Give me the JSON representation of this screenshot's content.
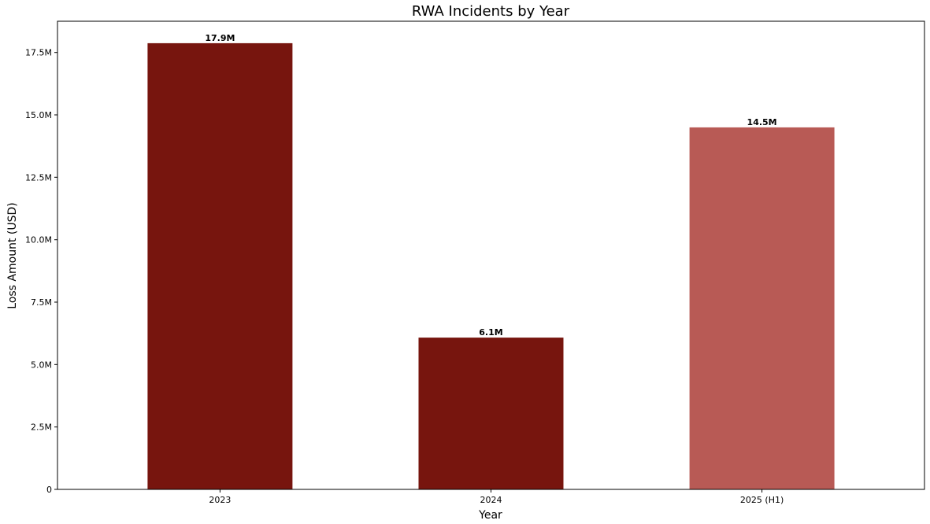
{
  "chart_data": {
    "type": "bar",
    "title": "RWA Incidents by Year",
    "xlabel": "Year",
    "ylabel": "Loss Amount (USD)",
    "categories": [
      "2023",
      "2024",
      "2025 (H1)"
    ],
    "values": [
      17870000,
      6080000,
      14500000
    ],
    "value_labels": [
      "17.9M",
      "6.1M",
      "14.5M"
    ],
    "colors": [
      "#77150e",
      "#77150e",
      "#b85a55"
    ],
    "ylim": [
      0,
      18750000
    ],
    "yticks": [
      0,
      2500000,
      5000000,
      7500000,
      10000000,
      12500000,
      15000000,
      17500000
    ],
    "ytick_labels": [
      "0",
      "2.5M",
      "5.0M",
      "7.5M",
      "10.0M",
      "12.5M",
      "15.0M",
      "17.5M"
    ],
    "grid": false,
    "legend": "none"
  }
}
